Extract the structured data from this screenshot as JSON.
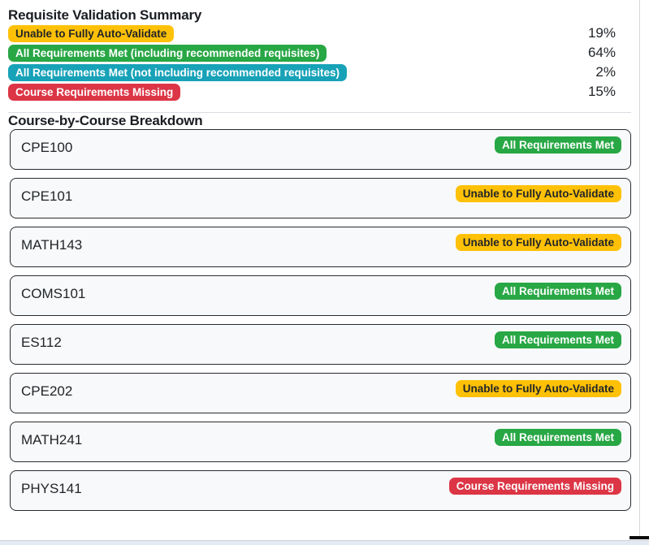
{
  "summary": {
    "title": "Requisite Validation Summary",
    "rows": [
      {
        "label": "Unable to Fully Auto-Validate",
        "variant": "warning",
        "percent": "19%"
      },
      {
        "label": "All Requirements Met (including recommended requisites)",
        "variant": "success",
        "percent": "64%"
      },
      {
        "label": "All Requirements Met (not including recommended requisites)",
        "variant": "info",
        "percent": "2%"
      },
      {
        "label": "Course Requirements Missing",
        "variant": "danger",
        "percent": "15%"
      }
    ]
  },
  "breakdown": {
    "title": "Course-by-Course Breakdown",
    "courses": [
      {
        "code": "CPE100",
        "status": "All Requirements Met",
        "variant": "success"
      },
      {
        "code": "CPE101",
        "status": "Unable to Fully Auto-Validate",
        "variant": "warning"
      },
      {
        "code": "MATH143",
        "status": "Unable to Fully Auto-Validate",
        "variant": "warning"
      },
      {
        "code": "COMS101",
        "status": "All Requirements Met",
        "variant": "success"
      },
      {
        "code": "ES112",
        "status": "All Requirements Met",
        "variant": "success"
      },
      {
        "code": "CPE202",
        "status": "Unable to Fully Auto-Validate",
        "variant": "warning"
      },
      {
        "code": "MATH241",
        "status": "All Requirements Met",
        "variant": "success"
      },
      {
        "code": "PHYS141",
        "status": "Course Requirements Missing",
        "variant": "danger"
      }
    ]
  },
  "colors": {
    "warning": "#ffc107",
    "success": "#28a745",
    "info": "#17a2b8",
    "danger": "#dc3545",
    "dark_text": "#212529",
    "light_text": "#ffffff"
  }
}
